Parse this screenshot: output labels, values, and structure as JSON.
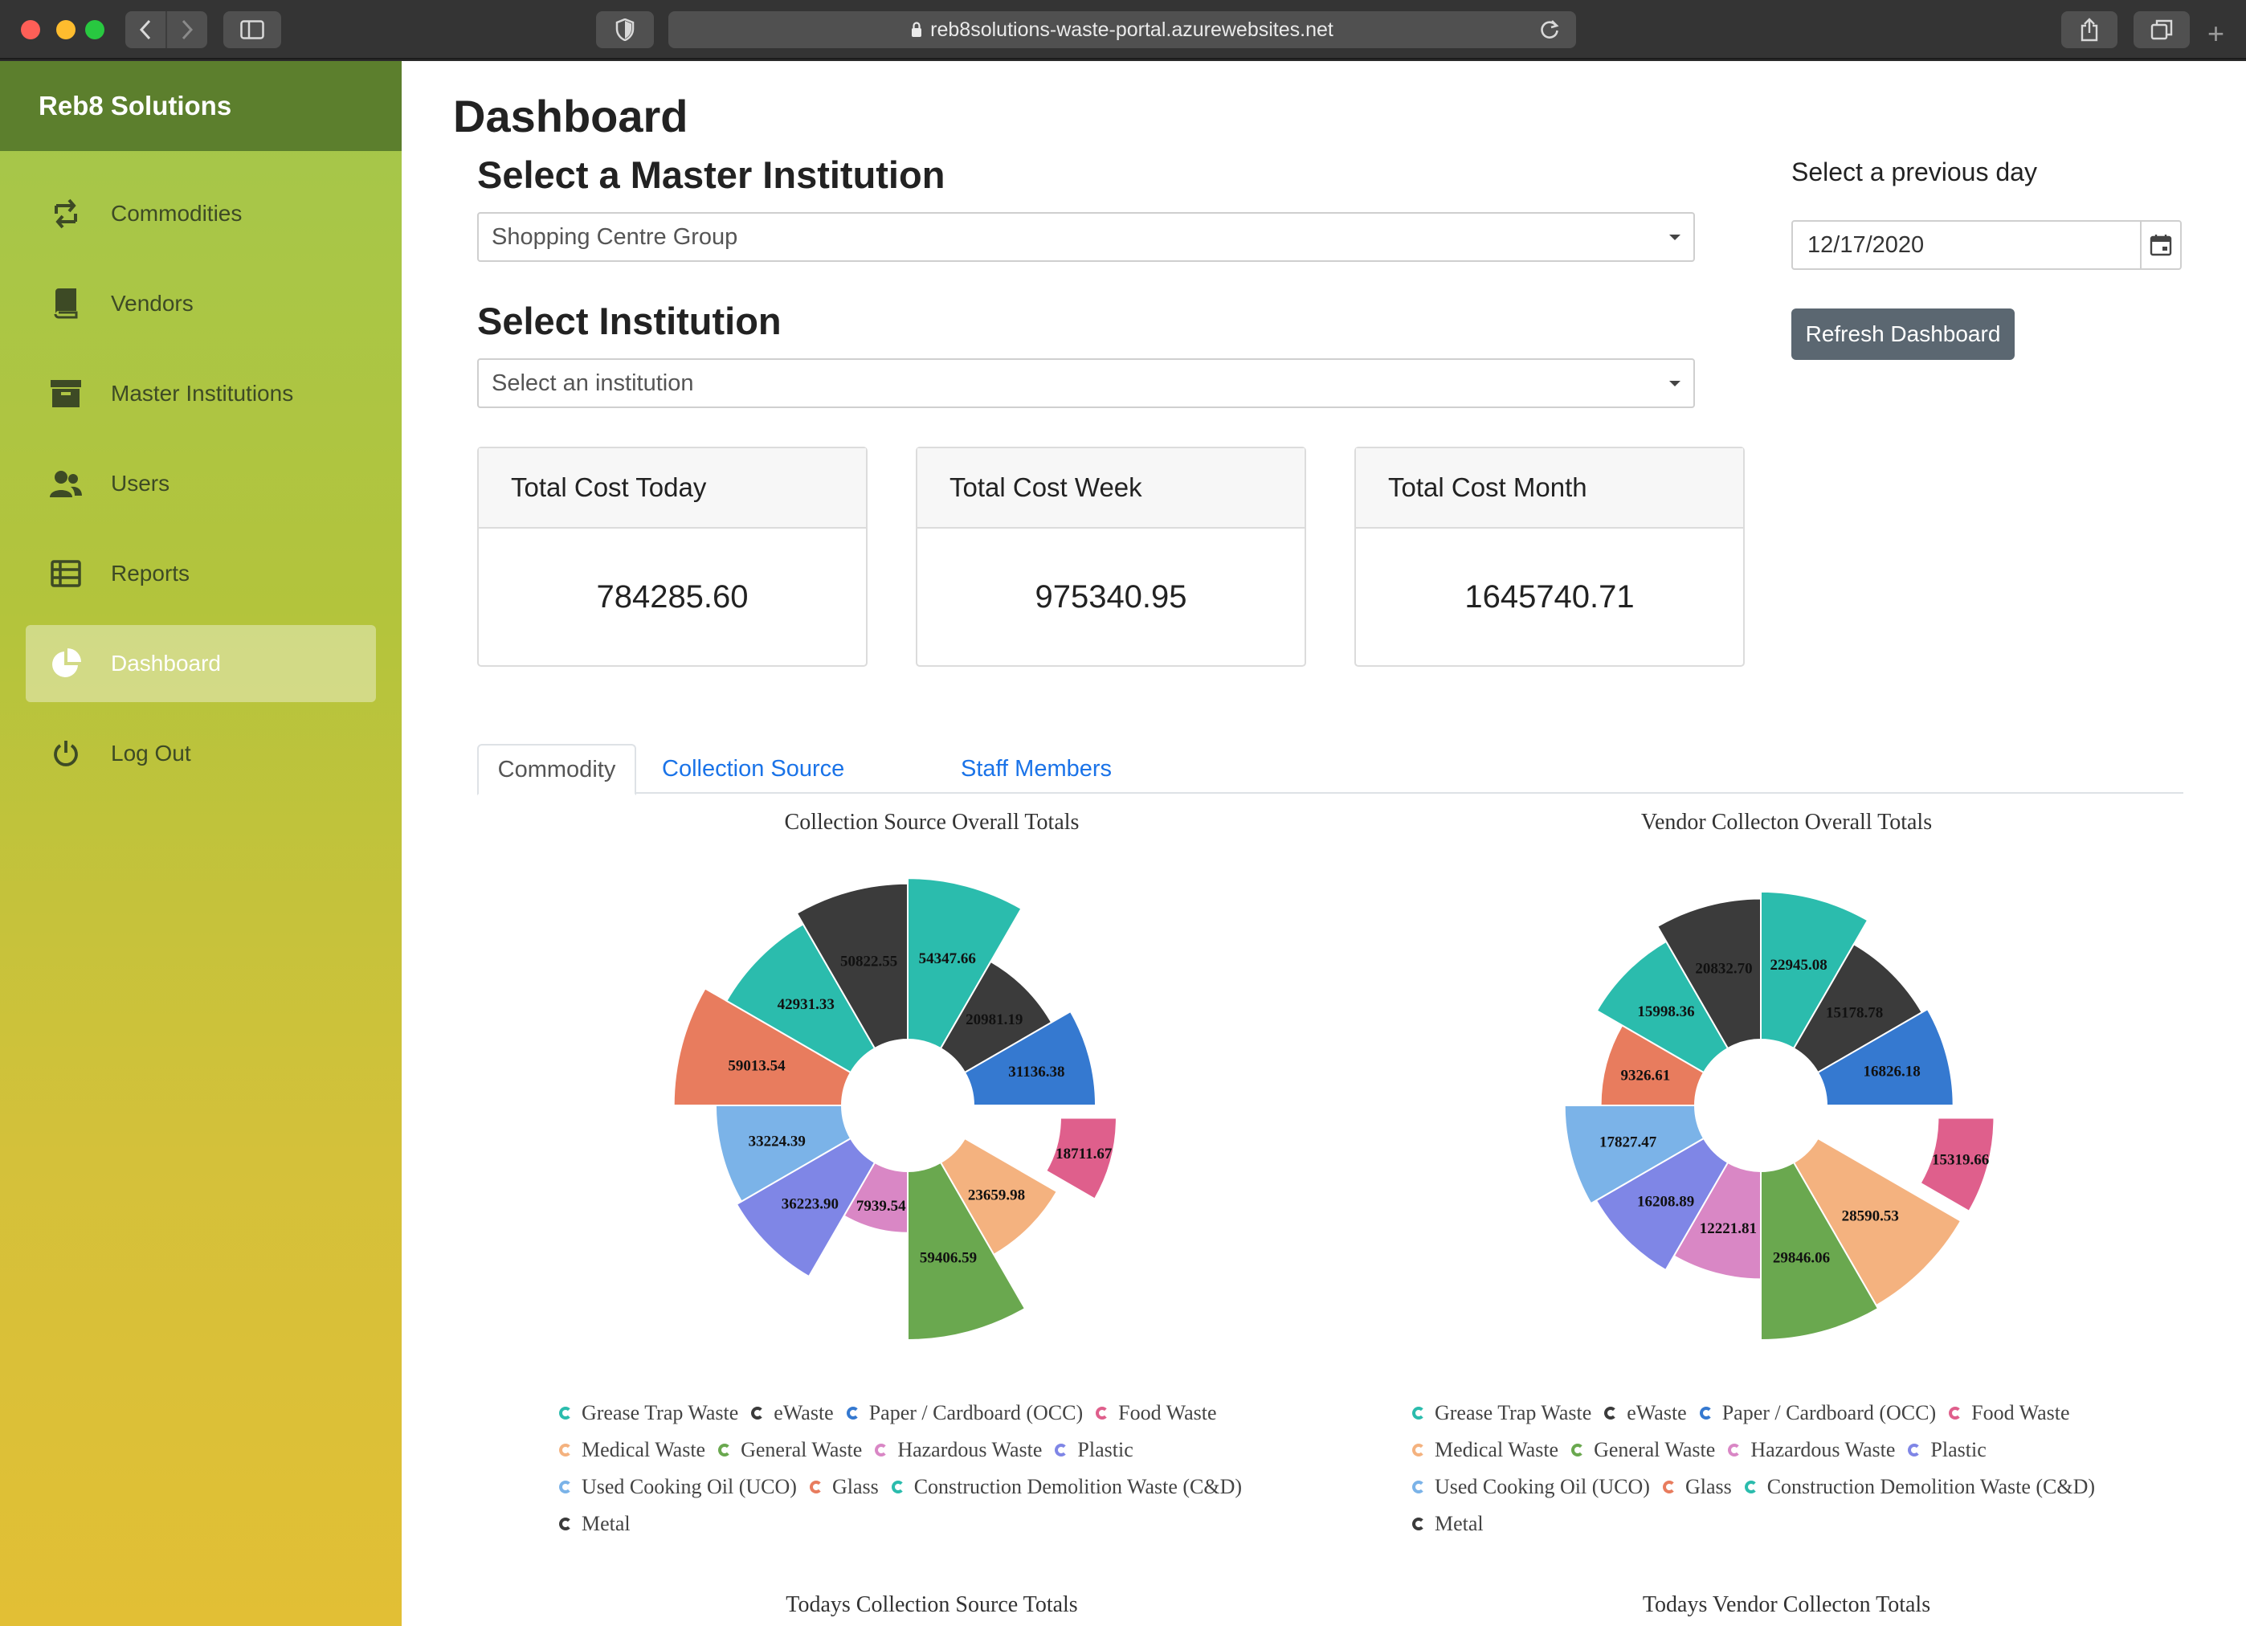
{
  "browser": {
    "url": "reb8solutions-waste-portal.azurewebsites.net"
  },
  "sidebar": {
    "brand": "Reb8 Solutions",
    "items": [
      {
        "label": "Commodities",
        "icon": "commodities-icon"
      },
      {
        "label": "Vendors",
        "icon": "book-icon"
      },
      {
        "label": "Master Institutions",
        "icon": "archive-icon"
      },
      {
        "label": "Users",
        "icon": "users-icon"
      },
      {
        "label": "Reports",
        "icon": "list-icon"
      },
      {
        "label": "Dashboard",
        "icon": "pie-chart-icon",
        "active": true
      },
      {
        "label": "Log Out",
        "icon": "power-icon"
      }
    ]
  },
  "main": {
    "title": "Dashboard",
    "master_institution": {
      "heading": "Select a Master Institution",
      "value": "Shopping Centre Group"
    },
    "institution": {
      "heading": "Select Institution",
      "placeholder": "Select an institution"
    },
    "previous_day": {
      "label": "Select a previous day",
      "value": "12/17/2020"
    },
    "refresh_label": "Refresh Dashboard",
    "cards": [
      {
        "title": "Total Cost Today",
        "value": "784285.60"
      },
      {
        "title": "Total Cost Week",
        "value": "975340.95"
      },
      {
        "title": "Total Cost Month",
        "value": "1645740.71"
      }
    ],
    "tabs": [
      {
        "label": "Commodity",
        "active": true
      },
      {
        "label": "Collection Source"
      },
      {
        "label": "Staff Members"
      }
    ]
  },
  "colors": {
    "sidebar_top": "#a4c74c",
    "sidebar_bottom": "#e2bf35",
    "brand_bar": "#5c7f2d",
    "link": "#1a73e8",
    "refresh_button": "#5b6771"
  },
  "chart_data": [
    {
      "type": "pie",
      "variant": "rose-donut",
      "title": "Collection Source Overall Totals",
      "exploded": "Food Waste",
      "slices": [
        {
          "name": "Grease Trap Waste",
          "value": 54347.66,
          "color": "#2bbcad"
        },
        {
          "name": "eWaste",
          "value": 20981.19,
          "color": "#3b3b3b"
        },
        {
          "name": "Paper / Cardboard (OCC)",
          "value": 31136.38,
          "color": "#3579d0"
        },
        {
          "name": "Food Waste",
          "value": 18711.67,
          "color": "#df5f8c"
        },
        {
          "name": "Medical Waste",
          "value": 23659.98,
          "color": "#f4b27f"
        },
        {
          "name": "General Waste",
          "value": 59406.59,
          "color": "#6aa84f"
        },
        {
          "name": "Hazardous Waste",
          "value": 7939.54,
          "color": "#d987c5"
        },
        {
          "name": "Plastic",
          "value": 36223.9,
          "color": "#7f86e6"
        },
        {
          "name": "Used Cooking Oil (UCO)",
          "value": 33224.39,
          "color": "#7bb3e8"
        },
        {
          "name": "Glass",
          "value": 59013.54,
          "color": "#e87c5e"
        },
        {
          "name": "Construction Demolition Waste (C&D)",
          "value": 42931.33,
          "color": "#2bbcad"
        },
        {
          "name": "Metal",
          "value": 50822.55,
          "color": "#3b3b3b"
        }
      ]
    },
    {
      "type": "pie",
      "variant": "rose-donut",
      "title": "Vendor Collecton Overall Totals",
      "exploded": "Food Waste",
      "slices": [
        {
          "name": "Grease Trap Waste",
          "value": 22945.08,
          "color": "#2bbcad"
        },
        {
          "name": "eWaste",
          "value": 15178.78,
          "color": "#3b3b3b"
        },
        {
          "name": "Paper / Cardboard (OCC)",
          "value": 16826.18,
          "color": "#3579d0"
        },
        {
          "name": "Food Waste",
          "value": 15319.66,
          "color": "#df5f8c"
        },
        {
          "name": "Medical Waste",
          "value": 28590.53,
          "color": "#f4b27f"
        },
        {
          "name": "General Waste",
          "value": 29846.06,
          "color": "#6aa84f"
        },
        {
          "name": "Hazardous Waste",
          "value": 12221.81,
          "color": "#d987c5"
        },
        {
          "name": "Plastic",
          "value": 16208.89,
          "color": "#7f86e6"
        },
        {
          "name": "Used Cooking Oil (UCO)",
          "value": 17827.47,
          "color": "#7bb3e8"
        },
        {
          "name": "Glass",
          "value": 9326.61,
          "color": "#e87c5e"
        },
        {
          "name": "Construction Demolition Waste (C&D)",
          "value": 15998.36,
          "color": "#2bbcad"
        },
        {
          "name": "Metal",
          "value": 20832.7,
          "color": "#3b3b3b"
        }
      ]
    }
  ],
  "bottom_titles": {
    "left": "Todays Collection Source Totals",
    "right": "Todays Vendor Collecton Totals"
  }
}
